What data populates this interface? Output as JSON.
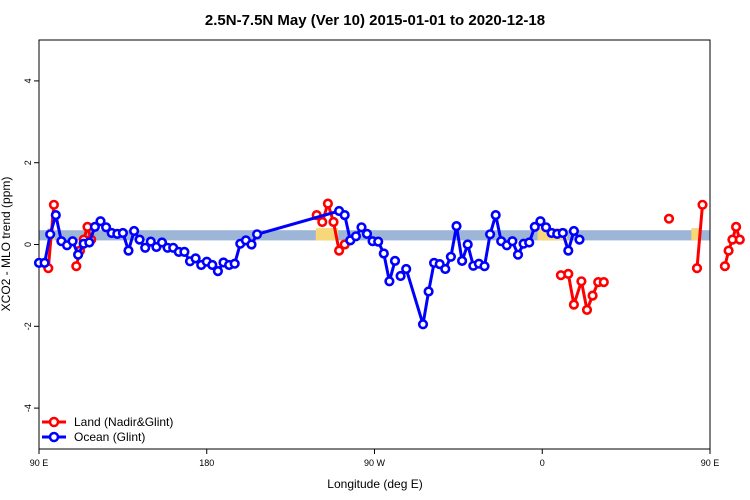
{
  "chart_data": {
    "type": "line",
    "title": "2.5N-7.5N May (Ver 10)   2015-01-01 to 2020-12-18",
    "xlabel": "Longitude (deg E)",
    "ylabel": "XCO2 - MLO trend (ppm)",
    "xlim": [
      90,
      450
    ],
    "ylim": [
      -5,
      5
    ],
    "x_ticks": [
      {
        "value": 90,
        "label": "90 E"
      },
      {
        "value": 180,
        "label": "180"
      },
      {
        "value": 270,
        "label": "90 W"
      },
      {
        "value": 360,
        "label": "0"
      },
      {
        "value": 450,
        "label": "90 E"
      },
      {
        "value": 540,
        "label": "180"
      }
    ],
    "y_ticks": [
      {
        "value": -4,
        "label": "-4"
      },
      {
        "value": -2,
        "label": "-2"
      },
      {
        "value": 0,
        "label": "0"
      },
      {
        "value": 2,
        "label": "2"
      },
      {
        "value": 4,
        "label": "4"
      }
    ],
    "grid": false,
    "legend_position": "bottom-left",
    "band": {
      "y_range": [
        0.1,
        0.35
      ],
      "ocean_color": "#9db6d8",
      "land_color": "#f7d77a",
      "land_x_ranges": [
        [
          94.5,
          98.5
        ],
        [
          238.5,
          250.5
        ],
        [
          242,
          248
        ],
        [
          357.5,
          373.5
        ],
        [
          440,
          444.5
        ],
        [
          462,
          467
        ],
        [
          477,
          483
        ],
        [
          491,
          496
        ]
      ]
    },
    "series": [
      {
        "name": "Land (Nadir&Glint)",
        "color": "#ff0000",
        "segments": [
          [
            [
              95,
              -0.58
            ],
            [
              98,
              0.97
            ]
          ],
          [
            [
              110,
              -0.53
            ],
            [
              112,
              -0.15
            ],
            [
              114,
              0.12
            ],
            [
              116,
              0.43
            ],
            [
              118,
              0.12
            ]
          ],
          [
            [
              239,
              0.72
            ],
            [
              242,
              0.55
            ],
            [
              245,
              1.0
            ],
            [
              248,
              0.55
            ],
            [
              251,
              -0.15
            ],
            [
              254,
              0.0
            ]
          ],
          [
            [
              370,
              -0.75
            ],
            [
              374,
              -0.72
            ],
            [
              377,
              -1.47
            ],
            [
              381,
              -0.9
            ],
            [
              384,
              -1.6
            ],
            [
              387,
              -1.25
            ],
            [
              390,
              -0.92
            ],
            [
              393,
              -0.92
            ]
          ],
          [
            [
              428,
              0.63
            ]
          ],
          [
            [
              443,
              -0.58
            ],
            [
              446,
              0.97
            ]
          ],
          [
            [
              458,
              -0.53
            ],
            [
              460,
              -0.15
            ],
            [
              462,
              0.12
            ],
            [
              464,
              0.43
            ],
            [
              466,
              0.12
            ]
          ]
        ]
      },
      {
        "name": "Ocean (Glint)",
        "color": "#0000ff",
        "segments": [
          [
            [
              90,
              -0.45
            ],
            [
              93,
              -0.45
            ],
            [
              96,
              0.25
            ],
            [
              99,
              0.72
            ],
            [
              102,
              0.08
            ],
            [
              105,
              -0.02
            ],
            [
              108,
              0.08
            ],
            [
              111,
              -0.25
            ],
            [
              114,
              0.02
            ],
            [
              117,
              0.05
            ],
            [
              120,
              0.43
            ],
            [
              123,
              0.57
            ],
            [
              126,
              0.42
            ],
            [
              129,
              0.28
            ],
            [
              132,
              0.26
            ],
            [
              135,
              0.28
            ],
            [
              138,
              -0.15
            ],
            [
              141,
              0.33
            ],
            [
              144,
              0.12
            ],
            [
              147,
              -0.08
            ],
            [
              150,
              0.07
            ],
            [
              153,
              -0.06
            ],
            [
              156,
              0.05
            ],
            [
              159,
              -0.08
            ],
            [
              162,
              -0.08
            ],
            [
              165,
              -0.18
            ],
            [
              168,
              -0.18
            ],
            [
              171,
              -0.41
            ],
            [
              174,
              -0.34
            ],
            [
              177,
              -0.5
            ],
            [
              180,
              -0.42
            ],
            [
              183,
              -0.5
            ],
            [
              186,
              -0.65
            ],
            [
              189,
              -0.44
            ],
            [
              192,
              -0.5
            ],
            [
              195,
              -0.47
            ],
            [
              198,
              0.02
            ],
            [
              201,
              0.1
            ],
            [
              204,
              0.0
            ],
            [
              207,
              0.25
            ],
            [
              251,
              0.82
            ],
            [
              254,
              0.72
            ],
            [
              257,
              0.1
            ],
            [
              260,
              0.2
            ],
            [
              263,
              0.42
            ],
            [
              266,
              0.26
            ],
            [
              269,
              0.08
            ],
            [
              272,
              0.07
            ],
            [
              275,
              -0.22
            ],
            [
              278,
              -0.9
            ],
            [
              281,
              -0.4
            ]
          ],
          [
            [
              284,
              -0.77
            ],
            [
              287,
              -0.6
            ],
            [
              296,
              -1.95
            ],
            [
              299,
              -1.15
            ],
            [
              302,
              -0.45
            ],
            [
              305,
              -0.48
            ],
            [
              308,
              -0.6
            ],
            [
              311,
              -0.3
            ],
            [
              314,
              0.45
            ],
            [
              317,
              -0.4
            ],
            [
              320,
              0.0
            ],
            [
              323,
              -0.52
            ],
            [
              326,
              -0.47
            ],
            [
              329,
              -0.53
            ],
            [
              332,
              0.25
            ],
            [
              335,
              0.72
            ],
            [
              338,
              0.08
            ],
            [
              341,
              -0.02
            ],
            [
              344,
              0.08
            ],
            [
              347,
              -0.25
            ],
            [
              350,
              0.02
            ],
            [
              353,
              0.05
            ],
            [
              356,
              0.43
            ],
            [
              359,
              0.57
            ],
            [
              362,
              0.42
            ],
            [
              365,
              0.28
            ],
            [
              368,
              0.26
            ],
            [
              371,
              0.28
            ],
            [
              374,
              -0.15
            ],
            [
              377,
              0.33
            ],
            [
              380,
              0.12
            ]
          ]
        ]
      }
    ]
  }
}
